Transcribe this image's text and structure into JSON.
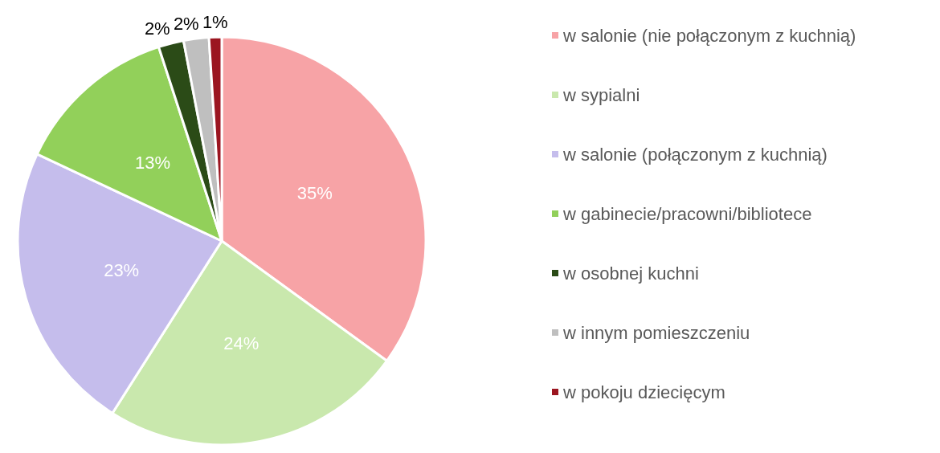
{
  "chart_data": {
    "type": "pie",
    "categories": [
      "w salonie (nie połączonym z kuchnią)",
      "w sypialni",
      "w salonie (połączonym z kuchnią)",
      "w gabinecie/pracowni/bibliotece",
      "w osobnej kuchni",
      "w innym pomieszczeniu",
      "w pokoju dziecięcym"
    ],
    "values": [
      35,
      24,
      23,
      13,
      2,
      2,
      1
    ],
    "value_labels": [
      "35%",
      "24%",
      "23%",
      "13%",
      "2%",
      "2%",
      "1%"
    ],
    "colors": [
      "#f7a3a6",
      "#c9e8ad",
      "#c5bdec",
      "#92d05a",
      "#2b4b17",
      "#bfbfbf",
      "#9b1520"
    ],
    "legend": "right"
  }
}
